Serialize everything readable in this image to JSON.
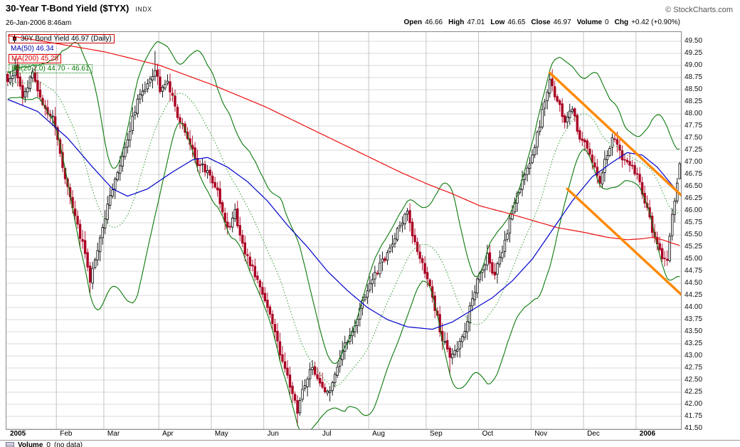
{
  "header": {
    "title": "30-Year T-Bond Yield ($TYX)",
    "index_tag": "INDX",
    "datetime": "26-Jan-2006 8:46am",
    "copyright": "© StockCharts.com"
  },
  "ohlc": {
    "items": [
      {
        "label": "Open",
        "value": "46.66"
      },
      {
        "label": "High",
        "value": "47.01"
      },
      {
        "label": "Low",
        "value": "46.65"
      },
      {
        "label": "Close",
        "value": "46.97"
      },
      {
        "label": "Volume",
        "value": "0"
      },
      {
        "label": "Chg",
        "value": "+0.42 (+0.90%)"
      }
    ]
  },
  "legend": {
    "rows": [
      {
        "text": "30Y Bond Yield 46.97 (Daily)",
        "color": "#000000",
        "border": "#cc0000",
        "border_style": "solid",
        "icon": "candlestick-icon"
      },
      {
        "text": "MA(50) 46.34",
        "color": "#0000aa",
        "border": null,
        "border_style": null,
        "icon": null
      },
      {
        "text": "MA(200) 45.28",
        "color": "#dd0000",
        "border": "#dd0000",
        "border_style": "solid",
        "icon": null
      },
      {
        "text": "BB(20,2.0) 44.70 - 46.61",
        "color": "#007a00",
        "border": "#007a00",
        "border_style": "dotted",
        "icon": null
      }
    ]
  },
  "volume_panel": {
    "label": "Volume",
    "value": "0",
    "note": "(no data)"
  },
  "chart_data": {
    "type": "candlestick",
    "symbol": "$TYX",
    "title": "30-Year T-Bond Yield",
    "timeframe": "Daily",
    "y_axis": {
      "min": 41.5,
      "max": 49.5,
      "step": 0.25,
      "decimals": 2
    },
    "x_axis": {
      "labels": [
        {
          "text": "2005",
          "bold": true
        },
        {
          "text": "Feb",
          "bold": false
        },
        {
          "text": "Mar",
          "bold": false
        },
        {
          "text": "Apr",
          "bold": false
        },
        {
          "text": "May",
          "bold": false
        },
        {
          "text": "Jun",
          "bold": false
        },
        {
          "text": "Jul",
          "bold": false
        },
        {
          "text": "Aug",
          "bold": false
        },
        {
          "text": "Sep",
          "bold": false
        },
        {
          "text": "Oct",
          "bold": false
        },
        {
          "text": "Nov",
          "bold": false
        },
        {
          "text": "Dec",
          "bold": false
        },
        {
          "text": "2006",
          "bold": true
        }
      ],
      "month_start_days": [
        0,
        20,
        39,
        61,
        82,
        103,
        125,
        145,
        168,
        189,
        210,
        231,
        252
      ],
      "total_days": 270
    },
    "last_bar": {
      "open": 46.66,
      "high": 47.01,
      "low": 46.65,
      "close": 46.97
    },
    "price_close_anchors": [
      [
        0,
        48.6
      ],
      [
        3,
        48.95
      ],
      [
        6,
        48.4
      ],
      [
        10,
        48.8
      ],
      [
        14,
        48.2
      ],
      [
        18,
        47.9
      ],
      [
        22,
        46.9
      ],
      [
        26,
        46.1
      ],
      [
        30,
        45.3
      ],
      [
        33,
        44.6
      ],
      [
        36,
        45.2
      ],
      [
        39,
        45.9
      ],
      [
        43,
        46.6
      ],
      [
        47,
        47.3
      ],
      [
        52,
        48.3
      ],
      [
        56,
        48.6
      ],
      [
        59,
        48.95
      ],
      [
        61,
        48.5
      ],
      [
        64,
        48.65
      ],
      [
        68,
        48.0
      ],
      [
        72,
        47.5
      ],
      [
        76,
        47.0
      ],
      [
        80,
        46.8
      ],
      [
        84,
        46.4
      ],
      [
        88,
        45.6
      ],
      [
        91,
        45.95
      ],
      [
        94,
        45.3
      ],
      [
        98,
        44.8
      ],
      [
        102,
        44.35
      ],
      [
        106,
        43.6
      ],
      [
        110,
        42.9
      ],
      [
        114,
        42.2
      ],
      [
        116,
        41.85
      ],
      [
        119,
        42.45
      ],
      [
        122,
        42.75
      ],
      [
        125,
        42.4
      ],
      [
        128,
        42.2
      ],
      [
        131,
        42.65
      ],
      [
        135,
        43.25
      ],
      [
        139,
        43.7
      ],
      [
        143,
        44.2
      ],
      [
        145,
        44.5
      ],
      [
        149,
        44.85
      ],
      [
        153,
        45.2
      ],
      [
        157,
        45.7
      ],
      [
        160,
        45.95
      ],
      [
        163,
        45.3
      ],
      [
        166,
        44.95
      ],
      [
        168,
        44.6
      ],
      [
        171,
        44.0
      ],
      [
        174,
        43.35
      ],
      [
        177,
        42.95
      ],
      [
        180,
        43.15
      ],
      [
        183,
        43.55
      ],
      [
        186,
        44.2
      ],
      [
        189,
        44.7
      ],
      [
        192,
        45.05
      ],
      [
        195,
        44.65
      ],
      [
        198,
        45.2
      ],
      [
        201,
        45.8
      ],
      [
        204,
        46.3
      ],
      [
        207,
        46.8
      ],
      [
        210,
        47.1
      ],
      [
        213,
        47.8
      ],
      [
        215,
        48.3
      ],
      [
        217,
        48.7
      ],
      [
        220,
        48.25
      ],
      [
        223,
        47.85
      ],
      [
        226,
        48.05
      ],
      [
        229,
        47.55
      ],
      [
        231,
        47.4
      ],
      [
        234,
        47.0
      ],
      [
        237,
        46.6
      ],
      [
        240,
        47.2
      ],
      [
        243,
        47.55
      ],
      [
        246,
        47.1
      ],
      [
        249,
        46.9
      ],
      [
        252,
        46.8
      ],
      [
        254,
        46.4
      ],
      [
        256,
        46.0
      ],
      [
        258,
        45.6
      ],
      [
        260,
        45.3
      ],
      [
        262,
        45.0
      ],
      [
        264,
        44.9
      ],
      [
        265,
        45.4
      ],
      [
        266,
        45.9
      ],
      [
        267,
        46.25
      ],
      [
        268,
        46.55
      ],
      [
        269,
        46.97
      ]
    ],
    "ma50": {
      "label": "MA(50)",
      "value": 46.34,
      "color": "#0000cc",
      "anchors": [
        [
          0,
          48.3
        ],
        [
          12,
          48.05
        ],
        [
          24,
          47.5
        ],
        [
          34,
          46.9
        ],
        [
          42,
          46.45
        ],
        [
          48,
          46.3
        ],
        [
          56,
          46.45
        ],
        [
          66,
          46.8
        ],
        [
          74,
          47.05
        ],
        [
          80,
          47.1
        ],
        [
          88,
          46.9
        ],
        [
          96,
          46.6
        ],
        [
          104,
          46.2
        ],
        [
          112,
          45.7
        ],
        [
          120,
          45.25
        ],
        [
          128,
          44.75
        ],
        [
          136,
          44.35
        ],
        [
          144,
          44.0
        ],
        [
          152,
          43.75
        ],
        [
          160,
          43.6
        ],
        [
          170,
          43.55
        ],
        [
          178,
          43.7
        ],
        [
          186,
          43.95
        ],
        [
          194,
          44.2
        ],
        [
          202,
          44.55
        ],
        [
          210,
          45.0
        ],
        [
          218,
          45.6
        ],
        [
          226,
          46.2
        ],
        [
          234,
          46.7
        ],
        [
          242,
          47.0
        ],
        [
          248,
          47.2
        ],
        [
          254,
          47.15
        ],
        [
          260,
          46.9
        ],
        [
          264,
          46.65
        ],
        [
          269,
          46.34
        ]
      ]
    },
    "ma200": {
      "label": "MA(200)",
      "value": 45.28,
      "color": "#ee1111",
      "anchors": [
        [
          0,
          49.62
        ],
        [
          20,
          49.45
        ],
        [
          39,
          49.28
        ],
        [
          61,
          49.0
        ],
        [
          82,
          48.6
        ],
        [
          103,
          48.15
        ],
        [
          125,
          47.6
        ],
        [
          145,
          47.1
        ],
        [
          157,
          46.8
        ],
        [
          168,
          46.55
        ],
        [
          178,
          46.35
        ],
        [
          189,
          46.1
        ],
        [
          200,
          45.95
        ],
        [
          210,
          45.8
        ],
        [
          220,
          45.65
        ],
        [
          231,
          45.55
        ],
        [
          240,
          45.45
        ],
        [
          248,
          45.4
        ],
        [
          254,
          45.42
        ],
        [
          258,
          45.45
        ],
        [
          262,
          45.4
        ],
        [
          266,
          45.33
        ],
        [
          269,
          45.28
        ]
      ]
    },
    "bollinger": {
      "period": 20,
      "stdev": 2.0,
      "lower_value": 44.7,
      "upper_value": 46.61,
      "band_color": "#0b7a0b",
      "mid_color": "#2f9b2f"
    },
    "trendlines": [
      {
        "from_day": 217,
        "from_value": 48.85,
        "to_day": 270,
        "to_value": 46.3
      },
      {
        "from_day": 224,
        "from_value": 46.45,
        "to_day": 270,
        "to_value": 44.25
      }
    ],
    "forced_points": [
      {
        "day": 59,
        "high": 49.3
      },
      {
        "day": 116,
        "low": 41.55
      },
      {
        "day": 33,
        "low": 44.3
      },
      {
        "day": 177,
        "low": 42.6
      },
      {
        "day": 217,
        "high": 48.88
      }
    ],
    "colors": {
      "up": "#000000",
      "up_fill": "#ffffff",
      "down": "#aa0022",
      "grid_h": "#d8d8d8",
      "grid_v": "#c4c4c4",
      "border": "#8a8a8a",
      "trendline": "#ff8800"
    }
  }
}
